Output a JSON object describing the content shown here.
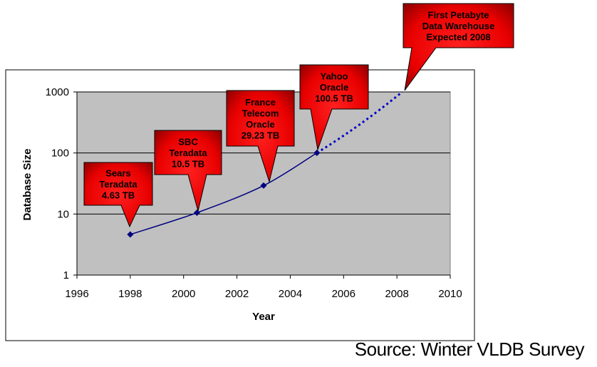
{
  "source": "Source: Winter VLDB Survey",
  "chart_data": {
    "type": "line",
    "xlabel": "Year",
    "ylabel": "Database Size",
    "xlim": [
      1996,
      2010
    ],
    "ylim": [
      1,
      1000
    ],
    "yscale": "log",
    "x_ticks": [
      "1996",
      "1998",
      "2000",
      "2002",
      "2004",
      "2006",
      "2008",
      "2010"
    ],
    "y_ticks": [
      "1",
      "10",
      "100",
      "1000"
    ],
    "grid": "horizontal",
    "series": [
      {
        "points": [
          {
            "x": 1998,
            "y": 4.63
          },
          {
            "x": 2000.5,
            "y": 10.5
          },
          {
            "x": 2003,
            "y": 29.23
          },
          {
            "x": 2005,
            "y": 100.5
          }
        ],
        "color": "#000080"
      },
      {
        "style": "dotted",
        "points": [
          {
            "x": 2005,
            "y": 100.5
          },
          {
            "x": 2008.2,
            "y": 1000
          }
        ],
        "color": "#0000cc"
      }
    ],
    "annotations": [
      {
        "lines": [
          "Sears",
          "Teradata",
          "4.63 TB"
        ],
        "x": 1998,
        "y": 4.63
      },
      {
        "lines": [
          "SBC",
          "Teradata",
          "10.5 TB"
        ],
        "x": 2000.5,
        "y": 10.5
      },
      {
        "lines": [
          "France",
          "Telecom",
          "Oracle",
          "29.23 TB"
        ],
        "x": 2003,
        "y": 29.23
      },
      {
        "lines": [
          "Yahoo",
          "Oracle",
          "100.5 TB"
        ],
        "x": 2005,
        "y": 100.5
      },
      {
        "lines": [
          "First Petabyte",
          "Data Warehouse",
          "Expected 2008"
        ],
        "x": 2008.2,
        "y": 1000
      }
    ],
    "colors": {
      "plot_background": "#c0c0c0",
      "callout_fill": "#ff0000",
      "callout_dark": "#8b0000"
    }
  }
}
